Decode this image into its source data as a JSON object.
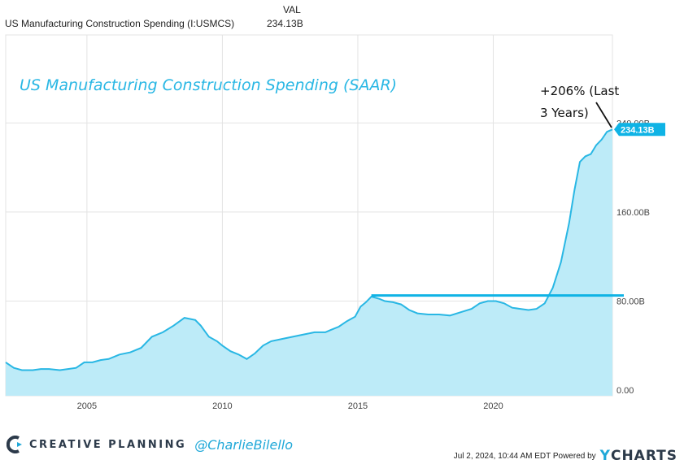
{
  "header": {
    "col_label": "VAL",
    "series_name": "US Manufacturing Construction Spending (I:USMCS)",
    "series_value": "234.13B"
  },
  "colors": {
    "line": "#29b7e4",
    "fill": "#bdebf8",
    "title": "#29b7e4",
    "badge": "#0fb3e5",
    "hline": "#0fb3e5"
  },
  "chart_data": {
    "type": "area",
    "title": "US Manufacturing Construction Spending (SAAR)",
    "annotation": "+206% (Last 3 Years)",
    "annotation_line1": "+206% (Last",
    "annotation_line2": "3 Years)",
    "current_value_label": "234.13B",
    "x_ticks": [
      "2005",
      "2010",
      "2015",
      "2020"
    ],
    "y_ticks": [
      "0.00",
      "80.00B",
      "160.00B",
      "240.00B"
    ],
    "y_tick_values": [
      0,
      80,
      160,
      240
    ],
    "xlim": [
      2002.0,
      2024.4
    ],
    "ylim": [
      -5,
      319
    ],
    "grid": true,
    "reference_line": {
      "value": 85,
      "x_start": 2015.5,
      "x_end": 2024.4
    },
    "series": [
      {
        "x": [
          2002.0,
          2002.3,
          2002.6,
          2003.0,
          2003.3,
          2003.6,
          2004.0,
          2004.3,
          2004.6,
          2004.9,
          2005.2,
          2005.5,
          2005.8,
          2006.2,
          2006.6,
          2007.0,
          2007.4,
          2007.8,
          2008.2,
          2008.6,
          2009.0,
          2009.2,
          2009.5,
          2009.8,
          2010.0,
          2010.3,
          2010.6,
          2010.9,
          2011.2,
          2011.5,
          2011.8,
          2012.2,
          2012.6,
          2013.0,
          2013.4,
          2013.8,
          2014.0,
          2014.3,
          2014.6,
          2014.9,
          2015.1,
          2015.3,
          2015.5,
          2015.8,
          2016.0,
          2016.3,
          2016.6,
          2016.9,
          2017.2,
          2017.6,
          2018.0,
          2018.4,
          2018.8,
          2019.2,
          2019.5,
          2019.8,
          2020.1,
          2020.4,
          2020.7,
          2021.0,
          2021.3,
          2021.6,
          2021.9,
          2022.2,
          2022.5,
          2022.8,
          2023.0,
          2023.2,
          2023.4,
          2023.6,
          2023.8,
          2024.0,
          2024.2,
          2024.4
        ],
        "y": [
          25,
          20,
          18,
          18,
          19,
          19,
          18,
          19,
          20,
          25,
          25,
          27,
          28,
          32,
          34,
          38,
          48,
          52,
          58,
          65,
          63,
          58,
          48,
          44,
          40,
          35,
          32,
          28,
          33,
          40,
          44,
          46,
          48,
          50,
          52,
          52,
          54,
          57,
          62,
          66,
          75,
          79,
          84,
          82,
          80,
          79,
          77,
          72,
          69,
          68,
          68,
          67,
          70,
          73,
          78,
          80,
          80,
          78,
          74,
          73,
          72,
          73,
          78,
          92,
          115,
          150,
          180,
          205,
          210,
          212,
          220,
          225,
          232,
          234.13
        ]
      }
    ]
  },
  "branding": {
    "logo_icon": "creative-planning-logo",
    "company": "CREATIVE PLANNING",
    "handle": "@CharlieBilello"
  },
  "footer": {
    "timestamp": "Jul 2, 2024, 10:44 AM EDT Powered by",
    "ycharts_y": "Y",
    "ycharts_rest": "CHARTS"
  }
}
